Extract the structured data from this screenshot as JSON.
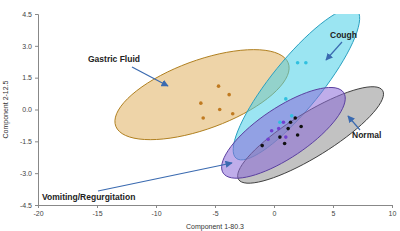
{
  "chart_data": {
    "type": "scatter",
    "x_label": "Component 1-80.3",
    "y_label": "Component 2-12.5",
    "xlim": [
      -20,
      10
    ],
    "xticks": [
      -20,
      -15,
      -10,
      -5,
      {
        "value": 0,
        "label": "0"
      },
      5,
      10
    ],
    "ylim": [
      -4.5,
      4.5
    ],
    "yticks": [
      -4.5,
      {
        "value": -3,
        "label": "-3.0"
      },
      -1.5,
      {
        "value": 0,
        "label": "0.0"
      },
      1.5,
      {
        "value": 3,
        "label": "3.0"
      },
      4.5
    ],
    "series": [
      {
        "name": "Gastric Fluid",
        "color": "#e0b060",
        "x": [
          -6.2,
          -4.7,
          -3.8,
          -4.6,
          -6.0,
          -3.5
        ],
        "values": [
          0.3,
          1.1,
          0.7,
          0.0,
          -0.4,
          -0.2
        ],
        "ellipse": {
          "center": [
            -6.1,
            0.7
          ],
          "axis1": [
            7.3,
            1.5
          ],
          "axis2": [
            1.1,
            -1.5
          ]
        }
      },
      {
        "name": "Cough",
        "color": "#48d0e8",
        "x": [
          2.0,
          2.7,
          1.0,
          1.5,
          0.5
        ],
        "values": [
          2.2,
          2.2,
          0.5,
          -0.3,
          -0.6
        ],
        "ellipse": {
          "center": [
            1.9,
            1.2
          ],
          "axis1": [
            5.1,
            3.5
          ],
          "axis2": [
            1.65,
            -0.73
          ]
        }
      },
      {
        "name": "Normal",
        "color": "#909090",
        "x": [
          -1.0,
          0.5,
          1.2,
          1.8,
          2.0,
          1.4,
          0.9,
          2.3
        ],
        "values": [
          -1.7,
          -1.3,
          -0.9,
          -0.4,
          -1.2,
          -0.6,
          -1.6,
          -0.8
        ],
        "ellipse": {
          "center": [
            3.1,
            -1.2
          ],
          "axis1": [
            6.1,
            2.1
          ],
          "axis2": [
            1.0,
            -0.87
          ]
        }
      },
      {
        "name": "Vomiting/Regurgitation",
        "color": "#8a6ad8",
        "x": [
          -0.2,
          0.4,
          0.8,
          1.0,
          -0.5
        ],
        "values": [
          -1.0,
          -0.9,
          -0.6,
          -1.3,
          -1.4
        ],
        "ellipse": {
          "center": [
            0.8,
            -1.1
          ],
          "axis1": [
            5.1,
            1.9
          ],
          "axis2": [
            1.2,
            -0.98
          ]
        }
      }
    ]
  }
}
